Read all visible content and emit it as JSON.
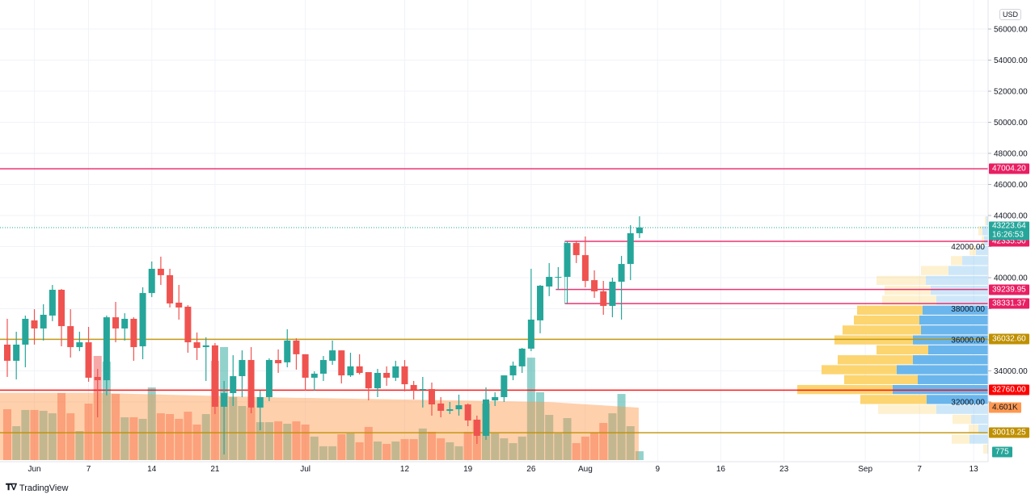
{
  "currency": "USD",
  "branding": "TradingView",
  "chart_data": {
    "type": "candlestick",
    "title": "",
    "y_axis": {
      "ticks": [
        32000,
        34000,
        36000,
        38000,
        40000,
        42000,
        44000,
        46000,
        48000,
        50000,
        52000,
        54000,
        56000
      ],
      "tick_labels": [
        "32000.00",
        "34000.00",
        "36000.00",
        "38000.00",
        "40000.00",
        "42000.00",
        "44000.00",
        "46000.00",
        "48000.00",
        "50000.00",
        "52000.00",
        "54000.00",
        "56000.00"
      ],
      "position": "right",
      "grid": true
    },
    "x_axis": {
      "ticks": [
        {
          "date": "06-01",
          "label": "Jun"
        },
        {
          "date": "06-07",
          "label": "7"
        },
        {
          "date": "06-14",
          "label": "14"
        },
        {
          "date": "06-21",
          "label": "21"
        },
        {
          "date": "07-01",
          "label": "Jul"
        },
        {
          "date": "07-12",
          "label": "12"
        },
        {
          "date": "07-19",
          "label": "19"
        },
        {
          "date": "07-26",
          "label": "26"
        },
        {
          "date": "08-01",
          "label": "Aug"
        },
        {
          "date": "08-09",
          "label": "9"
        },
        {
          "date": "08-16",
          "label": "16"
        },
        {
          "date": "08-23",
          "label": "23"
        },
        {
          "date": "09-01",
          "label": "Sep"
        },
        {
          "date": "09-07",
          "label": "7"
        },
        {
          "date": "09-13",
          "label": "13"
        }
      ],
      "grid": true
    },
    "columns": [
      "date",
      "open",
      "high",
      "low",
      "close"
    ],
    "candles": [
      [
        "05-29",
        35690,
        37350,
        33610,
        34650
      ],
      [
        "05-30",
        34650,
        36520,
        33450,
        35690
      ],
      [
        "05-31",
        35690,
        37560,
        34230,
        37350
      ],
      [
        "06-01",
        37250,
        37970,
        35690,
        36730
      ],
      [
        "06-02",
        36730,
        38290,
        35950,
        37610
      ],
      [
        "06-03",
        37560,
        39530,
        37200,
        39220
      ],
      [
        "06-04",
        39220,
        39270,
        35580,
        36880
      ],
      [
        "06-05",
        36880,
        37970,
        34860,
        35530
      ],
      [
        "06-06",
        35530,
        36520,
        35270,
        35840
      ],
      [
        "06-07",
        35840,
        36830,
        33300,
        33560
      ],
      [
        "06-08",
        33610,
        34130,
        31010,
        33400
      ],
      [
        "06-09",
        33400,
        37560,
        32420,
        37450
      ],
      [
        "06-10",
        37450,
        38440,
        35840,
        36730
      ],
      [
        "06-11",
        36730,
        37710,
        35950,
        37350
      ],
      [
        "06-12",
        37350,
        37450,
        34650,
        35530
      ],
      [
        "06-13",
        35580,
        39380,
        34750,
        39010
      ],
      [
        "06-14",
        39010,
        41040,
        38750,
        40570
      ],
      [
        "06-15",
        40570,
        41350,
        39530,
        40160
      ],
      [
        "06-16",
        40160,
        40570,
        38080,
        38340
      ],
      [
        "06-17",
        38390,
        39530,
        37300,
        38080
      ],
      [
        "06-18",
        38130,
        38230,
        35170,
        35840
      ],
      [
        "06-19",
        35840,
        36470,
        34700,
        35480
      ],
      [
        "06-20",
        35530,
        36160,
        33350,
        35640
      ],
      [
        "06-21",
        35640,
        35790,
        31220,
        31690
      ],
      [
        "06-22",
        31690,
        33350,
        28620,
        32570
      ],
      [
        "06-23",
        32570,
        35010,
        31740,
        33660
      ],
      [
        "06-24",
        33660,
        35320,
        32310,
        34700
      ],
      [
        "06-25",
        34700,
        35530,
        31270,
        31640
      ],
      [
        "06-26",
        31640,
        32730,
        30180,
        32310
      ],
      [
        "06-27",
        32310,
        34810,
        32050,
        34700
      ],
      [
        "06-28",
        34700,
        35380,
        33870,
        34490
      ],
      [
        "06-29",
        34550,
        36680,
        34230,
        35950
      ],
      [
        "06-30",
        35950,
        36100,
        34080,
        35070
      ],
      [
        "07-01",
        35070,
        35070,
        32730,
        33560
      ],
      [
        "07-02",
        33560,
        33970,
        32730,
        33820
      ],
      [
        "07-03",
        33820,
        34960,
        33350,
        34700
      ],
      [
        "07-04",
        34650,
        35950,
        34390,
        35320
      ],
      [
        "07-05",
        35320,
        35320,
        33190,
        33710
      ],
      [
        "07-06",
        33710,
        35170,
        33610,
        34290
      ],
      [
        "07-07",
        34290,
        35070,
        33770,
        33870
      ],
      [
        "07-08",
        33920,
        33920,
        32100,
        32880
      ],
      [
        "07-09",
        32880,
        34130,
        32310,
        33870
      ],
      [
        "07-10",
        33870,
        34290,
        33040,
        33560
      ],
      [
        "07-11",
        33560,
        34650,
        33350,
        34290
      ],
      [
        "07-12",
        34290,
        34700,
        32680,
        33140
      ],
      [
        "07-13",
        33090,
        33350,
        32160,
        32780
      ],
      [
        "07-14",
        32780,
        33610,
        31640,
        32830
      ],
      [
        "07-15",
        32830,
        33250,
        31120,
        31840
      ],
      [
        "07-16",
        31900,
        32310,
        31010,
        31430
      ],
      [
        "07-17",
        31430,
        32000,
        31220,
        31530
      ],
      [
        "07-18",
        31530,
        32470,
        31120,
        31790
      ],
      [
        "07-19",
        31840,
        31900,
        30440,
        30810
      ],
      [
        "07-20",
        30860,
        31120,
        29300,
        29820
      ],
      [
        "07-21",
        29820,
        32940,
        29560,
        32160
      ],
      [
        "07-22",
        32100,
        32620,
        31740,
        32310
      ],
      [
        "07-23",
        32310,
        33710,
        32000,
        33710
      ],
      [
        "07-24",
        33710,
        34600,
        33400,
        34340
      ],
      [
        "07-25",
        34290,
        35480,
        33870,
        35430
      ],
      [
        "07-26",
        35430,
        40570,
        35270,
        37300
      ],
      [
        "07-27",
        37250,
        39530,
        36420,
        39480
      ],
      [
        "07-28",
        39430,
        40940,
        38810,
        40050
      ],
      [
        "07-29",
        40000,
        40680,
        39220,
        40050
      ],
      [
        "07-30",
        40050,
        42340,
        38340,
        42230
      ],
      [
        "07-31",
        42230,
        42390,
        40940,
        41450
      ],
      [
        "08-01",
        41450,
        42650,
        39380,
        39790
      ],
      [
        "08-02",
        39840,
        40470,
        38700,
        39120
      ],
      [
        "08-03",
        39120,
        39790,
        37610,
        38180
      ],
      [
        "08-04",
        38180,
        40000,
        37450,
        39740
      ],
      [
        "08-05",
        39740,
        41400,
        37300,
        40880
      ],
      [
        "08-06",
        40880,
        43380,
        39840,
        42860
      ],
      [
        "08-07",
        42860,
        43950,
        42550,
        43223.64
      ]
    ],
    "volume": [
      4470,
      2980,
      4400,
      4400,
      4330,
      4110,
      5890,
      4110,
      2550,
      4960,
      9150,
      8650,
      5810,
      3760,
      3760,
      3620,
      6380,
      4110,
      4040,
      3620,
      4250,
      3120,
      4040,
      8720,
      9930,
      5530,
      4750,
      4610,
      3330,
      3330,
      3400,
      3190,
      3400,
      3120,
      2060,
      1210,
      1210,
      2270,
      2340,
      1560,
      2910,
      1630,
      1420,
      1630,
      1840,
      1840,
      2770,
      2480,
      1910,
      1560,
      1210,
      2480,
      3550,
      4960,
      2340,
      1910,
      1490,
      2060,
      9000,
      5960,
      3970,
      2340,
      3690,
      1490,
      2060,
      2410,
      3260,
      4110,
      5810,
      2980,
      775
    ],
    "volume_ma": [
      [
        0,
        5900
      ],
      [
        10,
        5900
      ],
      [
        30,
        5500
      ],
      [
        53,
        5200
      ],
      [
        60,
        5100
      ],
      [
        70,
        4601
      ]
    ],
    "volume_profile": {
      "range": [
        28623,
        43948
      ],
      "rows": [
        {
          "up": 2,
          "down": 2,
          "value_area": false
        },
        {
          "up": 7,
          "down": 5,
          "value_area": false
        },
        {
          "up": 5,
          "down": 3,
          "value_area": false
        },
        {
          "up": 15,
          "down": 8,
          "value_area": false
        },
        {
          "up": 32,
          "down": 14,
          "value_area": false
        },
        {
          "up": 49,
          "down": 34,
          "value_area": false
        },
        {
          "up": 77,
          "down": 61,
          "value_area": false
        },
        {
          "up": 71,
          "down": 57,
          "value_area": false
        },
        {
          "up": 64,
          "down": 67,
          "value_area": false
        },
        {
          "up": 81,
          "down": 81,
          "value_area": true
        },
        {
          "up": 85,
          "down": 81,
          "value_area": true
        },
        {
          "up": 83,
          "down": 97,
          "value_area": true
        },
        {
          "up": 93,
          "down": 97,
          "value_area": true
        },
        {
          "up": 74,
          "down": 64,
          "value_area": true
        },
        {
          "up": 93,
          "down": 93,
          "value_area": true
        },
        {
          "up": 113,
          "down": 93,
          "value_area": true
        },
        {
          "up": 87,
          "down": 91,
          "value_area": true
        },
        {
          "up": 118,
          "down": 118,
          "value_area": true
        },
        {
          "up": 76,
          "down": 82,
          "value_area": true
        },
        {
          "up": 64,
          "down": 72,
          "value_area": false
        },
        {
          "up": 21,
          "down": 23,
          "value_area": false
        },
        {
          "up": 12,
          "down": 12,
          "value_area": false
        },
        {
          "up": 23,
          "down": 22,
          "value_area": false
        },
        {
          "up": 1,
          "down": 5,
          "value_area": false
        }
      ]
    },
    "horizontal_levels": [
      {
        "price": 47004.2,
        "label": "47004.20",
        "color": "#e91e63",
        "from": "05-29"
      },
      {
        "price": 42335.5,
        "label": "42335.50",
        "color": "#e91e63",
        "from": "07-30"
      },
      {
        "price": 39239.95,
        "label": "39239.95",
        "color": "#e91e63",
        "from": "07-29"
      },
      {
        "price": 38331.37,
        "label": "38331.37",
        "color": "#e91e63",
        "from": "07-30"
      },
      {
        "price": 36032.6,
        "label": "36032.60",
        "color": "#bf9000",
        "from": "05-29"
      },
      {
        "price": 32760.0,
        "label": "32760.00",
        "color": "#ff0000",
        "from": "05-29"
      },
      {
        "price": 30019.25,
        "label": "30019.25",
        "color": "#bf9000",
        "from": "05-29"
      }
    ],
    "last_price": {
      "price": 43223.64,
      "label": "43223.64",
      "countdown": "16:26:53",
      "color": "#26a69a"
    },
    "volume_ma_label": {
      "value": "4.601K",
      "color": "#ff9850"
    },
    "last_volume_label": {
      "value": "775",
      "color": "#26a69a"
    },
    "colors": {
      "up": "#26a69a",
      "down": "#ef5350",
      "profile_up": "#5aaeea",
      "profile_down": "#fcd062",
      "volume_ma_area": "#ffcaa6"
    }
  }
}
